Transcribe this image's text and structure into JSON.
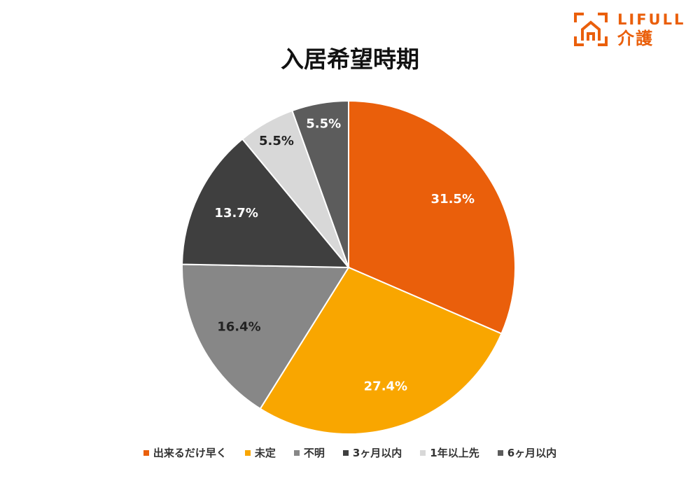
{
  "logo": {
    "wordmark": "LIFULL",
    "sub": "介護",
    "accent": "#EA5F0B"
  },
  "chart_data": {
    "type": "pie",
    "title": "入居希望時期",
    "start_angle_deg": 0,
    "direction": "clockwise",
    "legend_position": "bottom",
    "slices": [
      {
        "label": "出来るだけ早く",
        "value": 31.5,
        "display": "31.5%",
        "color": "#EA5F0B",
        "label_color": "#ffffff"
      },
      {
        "label": "未定",
        "value": 27.4,
        "display": "27.4%",
        "color": "#F9A600",
        "label_color": "#ffffff"
      },
      {
        "label": "不明",
        "value": 16.4,
        "display": "16.4%",
        "color": "#878787",
        "label_color": "#222222"
      },
      {
        "label": "3ヶ月以内",
        "value": 13.7,
        "display": "13.7%",
        "color": "#3F3F3F",
        "label_color": "#ffffff"
      },
      {
        "label": "1年以上先",
        "value": 5.5,
        "display": "5.5%",
        "color": "#D8D8D8",
        "label_color": "#222222"
      },
      {
        "label": "6ヶ月以内",
        "value": 5.5,
        "display": "5.5%",
        "color": "#5C5C5C",
        "label_color": "#ffffff"
      }
    ]
  }
}
